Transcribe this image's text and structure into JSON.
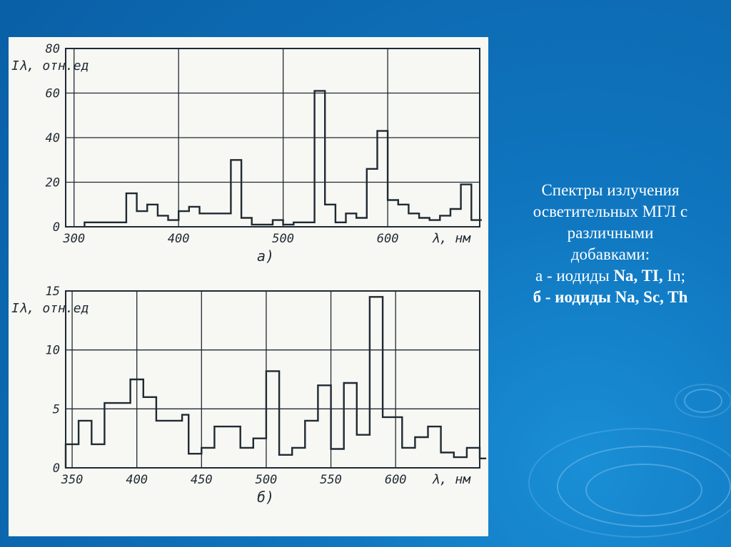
{
  "caption": {
    "line1": "Спектры излучения",
    "line2": "осветительных МГЛ с",
    "line3": "различными",
    "line4": "добавками:",
    "line5_prefix": "а - иодиды ",
    "line5_bold": "Na, TI,",
    "line5_suffix": " In;",
    "line6": "б - иодиды Na, Sc, Th"
  },
  "colors": {
    "background": "#0f76bf",
    "panel": "#f7f7f3",
    "ink": "#1f2a33",
    "caption_text": "#ffffff"
  },
  "chart_data": [
    {
      "type": "line",
      "step": true,
      "panel_label": "а)",
      "ylabel": "Iλ, отн.ед",
      "xlabel": "λ, нм",
      "xlim": [
        292,
        688
      ],
      "ylim": [
        0,
        80
      ],
      "xticks": [
        "300",
        "400",
        "500",
        "600"
      ],
      "xtick_values": [
        300,
        400,
        500,
        600
      ],
      "yticks": [
        "0",
        "20",
        "40",
        "60",
        "80"
      ],
      "ytick_values": [
        0,
        20,
        40,
        60,
        80
      ],
      "grid": true,
      "series": [
        {
          "x": [
            310,
            320,
            340,
            350,
            360,
            370,
            380,
            390,
            400,
            410,
            420,
            430,
            440,
            450,
            460,
            470,
            480,
            490,
            500,
            510,
            520,
            530,
            540,
            550,
            560,
            570,
            580,
            590,
            600,
            610,
            620,
            630,
            640,
            650,
            660,
            670,
            680
          ],
          "y": [
            2,
            2,
            2,
            15,
            7,
            10,
            5,
            3,
            7,
            9,
            6,
            6,
            6,
            30,
            4,
            1,
            1,
            3,
            1,
            2,
            2,
            61,
            10,
            2,
            6,
            4,
            26,
            43,
            12,
            10,
            6,
            4,
            3,
            5,
            8,
            19,
            3
          ]
        }
      ]
    },
    {
      "type": "line",
      "step": true,
      "panel_label": "б)",
      "ylabel": "Iλ, отн.ед",
      "xlabel": "λ, нм",
      "xlim": [
        345,
        665
      ],
      "ylim": [
        0,
        15
      ],
      "xticks": [
        "350",
        "400",
        "450",
        "500",
        "550",
        "600"
      ],
      "xtick_values": [
        350,
        400,
        450,
        500,
        550,
        600
      ],
      "yticks": [
        "0",
        "5",
        "10",
        "15"
      ],
      "ytick_values": [
        0,
        5,
        10,
        15
      ],
      "grid": true,
      "series": [
        {
          "x": [
            345,
            350,
            355,
            360,
            365,
            370,
            375,
            380,
            385,
            390,
            395,
            400,
            405,
            410,
            415,
            420,
            425,
            430,
            435,
            440,
            445,
            450,
            455,
            460,
            465,
            470,
            475,
            480,
            485,
            490,
            495,
            500,
            505,
            510,
            515,
            520,
            525,
            530,
            535,
            540,
            545,
            550,
            555,
            560,
            565,
            570,
            575,
            580,
            585,
            590,
            595,
            600,
            605,
            610,
            615,
            620,
            625,
            630,
            635,
            640,
            645,
            650,
            655,
            660,
            665
          ],
          "y": [
            2,
            2,
            4,
            4,
            2,
            2,
            5.5,
            5.5,
            5.5,
            5.5,
            7.5,
            7.5,
            6,
            6,
            4,
            4,
            4,
            4,
            4.5,
            1.2,
            1.2,
            1.7,
            1.7,
            3.5,
            3.5,
            3.5,
            3.5,
            1.7,
            1.7,
            2.5,
            2.5,
            8.2,
            8.2,
            1.1,
            1.1,
            1.7,
            1.7,
            4,
            4,
            7,
            7,
            1.6,
            1.6,
            7.2,
            7.2,
            2.8,
            2.8,
            14.5,
            14.5,
            4.3,
            4.3,
            4.3,
            1.7,
            1.7,
            2.6,
            2.6,
            3.5,
            3.5,
            1.3,
            1.3,
            0.9,
            0.9,
            1.7,
            1.7,
            0.8
          ]
        }
      ]
    }
  ]
}
